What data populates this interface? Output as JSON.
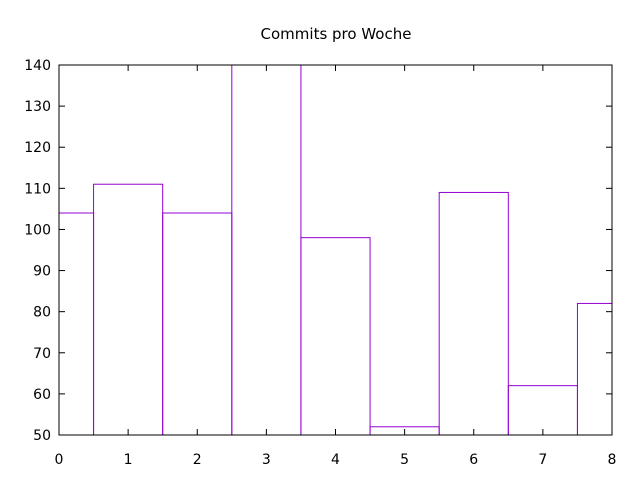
{
  "chart_data": {
    "type": "bar",
    "style": "steps",
    "title": "Commits pro Woche",
    "xlabel": "",
    "ylabel": "",
    "x": [
      0,
      1,
      2,
      3,
      4,
      5,
      6,
      7,
      8
    ],
    "values": [
      104,
      111,
      104,
      145,
      98,
      52,
      109,
      62,
      82
    ],
    "xlim": [
      0,
      8
    ],
    "ylim": [
      50,
      140
    ],
    "xticks": [
      "0",
      "1",
      "2",
      "3",
      "4",
      "5",
      "6",
      "7",
      "8"
    ],
    "yticks": [
      "50",
      "60",
      "70",
      "80",
      "90",
      "100",
      "110",
      "120",
      "130",
      "140"
    ],
    "grid": false,
    "legend": "none",
    "line_color": "#9400d3"
  }
}
